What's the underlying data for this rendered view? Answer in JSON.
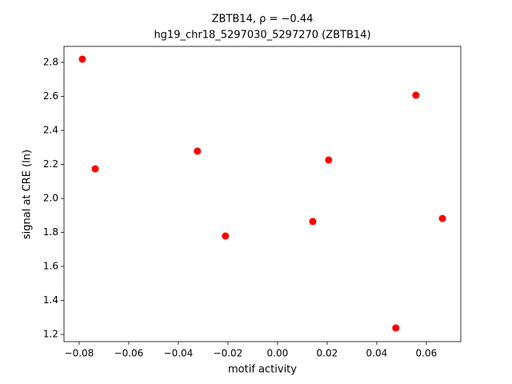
{
  "chart_data": {
    "type": "scatter",
    "title": "ZBTB14, ρ = −0.44",
    "subtitle": "hg19_chr18_5297030_5297270 (ZBTB14)",
    "x_label": "motif activity",
    "y_label": "signal at CRE (ln)",
    "color": "#ff0000",
    "x": [
      -0.0787,
      -0.0735,
      -0.0323,
      -0.021,
      0.0142,
      0.0206,
      0.0558,
      0.0665,
      0.0477
    ],
    "y": [
      2.819,
      2.174,
      2.278,
      1.779,
      1.864,
      2.226,
      2.607,
      1.882,
      1.238
    ],
    "xlim": [
      -0.0861,
      0.0739
    ],
    "ylim": [
      1.158,
      2.894
    ],
    "xticks": [
      {
        "value": -0.08,
        "label": "−0.08"
      },
      {
        "value": -0.06,
        "label": "−0.06"
      },
      {
        "value": -0.04,
        "label": "−0.04"
      },
      {
        "value": -0.02,
        "label": "−0.02"
      },
      {
        "value": 0,
        "label": "0.00"
      },
      0.02,
      0.04,
      0.06
    ],
    "yticks": [
      1.2,
      1.4,
      1.6,
      1.8,
      {
        "value": 2,
        "label": "2.0"
      },
      2.2,
      2.4,
      2.6,
      2.8
    ]
  }
}
